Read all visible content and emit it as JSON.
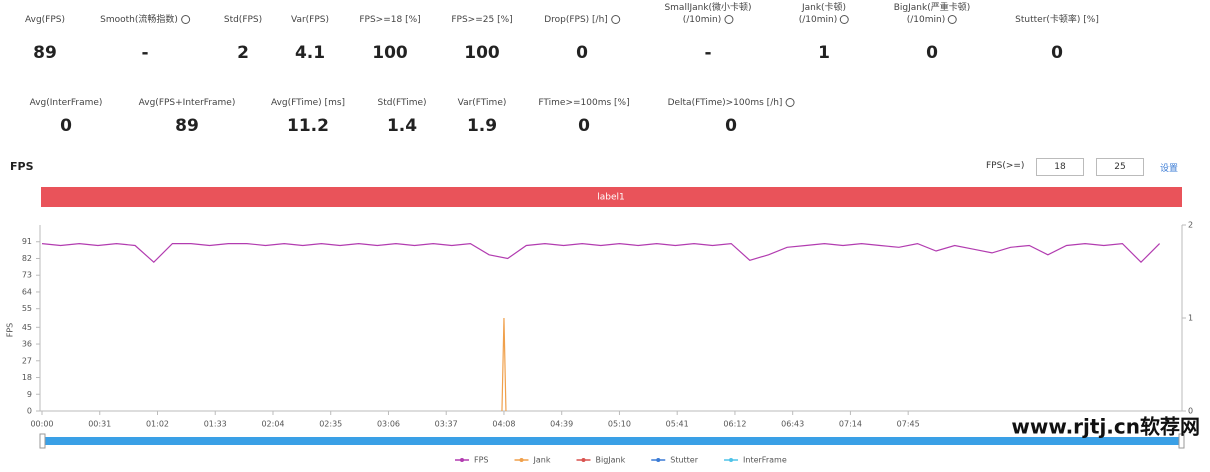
{
  "metrics_row1": [
    {
      "label": "Avg(FPS)",
      "value": 89
    },
    {
      "label": "Smooth(流畅指数)",
      "value": "-"
    },
    {
      "label": "Std(FPS)",
      "value": 2
    },
    {
      "label": "Var(FPS)",
      "value": 4.1
    },
    {
      "label": "FPS>=18 [%]",
      "value": 100
    },
    {
      "label": "FPS>=25 [%]",
      "value": 100
    },
    {
      "label": "Drop(FPS) [/h]",
      "value": 0
    },
    {
      "label": "SmallJank(微小卡顿)\n(/10min)",
      "value": "-"
    },
    {
      "label": "Jank(卡顿)\n(/10min)",
      "value": 1
    },
    {
      "label": "BigJank(严重卡顿)\n(/10min)",
      "value": 0
    },
    {
      "label": "Stutter(卡顿率) [%]",
      "value": 0
    }
  ],
  "metrics_row2": [
    {
      "label": "Avg(InterFrame)",
      "value": 0
    },
    {
      "label": "Avg(FPS+InterFrame)",
      "value": 89
    },
    {
      "label": "Avg(FTime) [ms]",
      "value": 11.2
    },
    {
      "label": "Std(FTime)",
      "value": 1.4
    },
    {
      "label": "Var(FTime)",
      "value": 1.9
    },
    {
      "label": "FTime>=100ms [%]",
      "value": 0
    },
    {
      "label": "Delta(FTime)>100ms [/h]",
      "value": 0
    }
  ],
  "controls": {
    "threshold_label": "FPS(>=)",
    "threshold_1": 18,
    "threshold_2": 25,
    "button": "设置"
  },
  "watermark": "www.rjtj.cn软荐网",
  "chart_data": {
    "type": "line",
    "title": "FPS",
    "band_label": "label1",
    "y_label": "FPS",
    "xlim": [
      0,
      612
    ],
    "xticks": [
      {
        "value": 0,
        "label": "00:00"
      },
      {
        "value": 31,
        "label": "00:31"
      },
      {
        "value": 62,
        "label": "01:02"
      },
      {
        "value": 93,
        "label": "01:33"
      },
      {
        "value": 124,
        "label": "02:04"
      },
      {
        "value": 155,
        "label": "02:35"
      },
      {
        "value": 186,
        "label": "03:06"
      },
      {
        "value": 217,
        "label": "03:37"
      },
      {
        "value": 248,
        "label": "04:08"
      },
      {
        "value": 279,
        "label": "04:39"
      },
      {
        "value": 310,
        "label": "05:10"
      },
      {
        "value": 341,
        "label": "05:41"
      },
      {
        "value": 372,
        "label": "06:12"
      },
      {
        "value": 403,
        "label": "06:43"
      },
      {
        "value": 434,
        "label": "07:14"
      },
      {
        "value": 465,
        "label": "07:45"
      }
    ],
    "ylim": [
      0,
      100
    ],
    "yticks": [
      0,
      9,
      18,
      27,
      36,
      45,
      55,
      64,
      73,
      82,
      91
    ],
    "y2lim": [
      0,
      2
    ],
    "y2ticks": [
      0,
      1,
      2
    ],
    "x": [
      0,
      10,
      20,
      30,
      40,
      50,
      60,
      70,
      80,
      90,
      100,
      110,
      120,
      130,
      140,
      150,
      160,
      170,
      180,
      190,
      200,
      210,
      220,
      230,
      240,
      250,
      260,
      270,
      280,
      290,
      300,
      310,
      320,
      330,
      340,
      350,
      360,
      370,
      380,
      390,
      400,
      410,
      420,
      430,
      440,
      450,
      460,
      470,
      480,
      490,
      500,
      510,
      520,
      530,
      540,
      550,
      560,
      570,
      580,
      590,
      600
    ],
    "series": [
      {
        "name": "FPS",
        "color": "#b23cb0",
        "values": [
          90,
          89,
          90,
          89,
          90,
          89,
          80,
          90,
          90,
          89,
          90,
          90,
          89,
          90,
          89,
          90,
          89,
          90,
          89,
          90,
          89,
          90,
          89,
          90,
          84,
          82,
          89,
          90,
          89,
          90,
          89,
          90,
          89,
          90,
          89,
          90,
          89,
          90,
          81,
          84,
          88,
          89,
          90,
          89,
          90,
          89,
          88,
          90,
          86,
          89,
          87,
          85,
          88,
          89,
          84,
          89,
          90,
          89,
          90,
          80,
          90
        ]
      },
      {
        "name": "Jank",
        "color": "#f0a04b",
        "axis": "y2",
        "x": [
          248
        ],
        "values": [
          1
        ]
      },
      {
        "name": "BigJank",
        "color": "#d9534f",
        "axis": "y2",
        "x": [],
        "values": []
      },
      {
        "name": "Stutter",
        "color": "#3a7bd5",
        "axis": "y2",
        "x": [],
        "values": []
      },
      {
        "name": "InterFrame",
        "color": "#4fc3e8",
        "x": [],
        "values": []
      }
    ]
  }
}
